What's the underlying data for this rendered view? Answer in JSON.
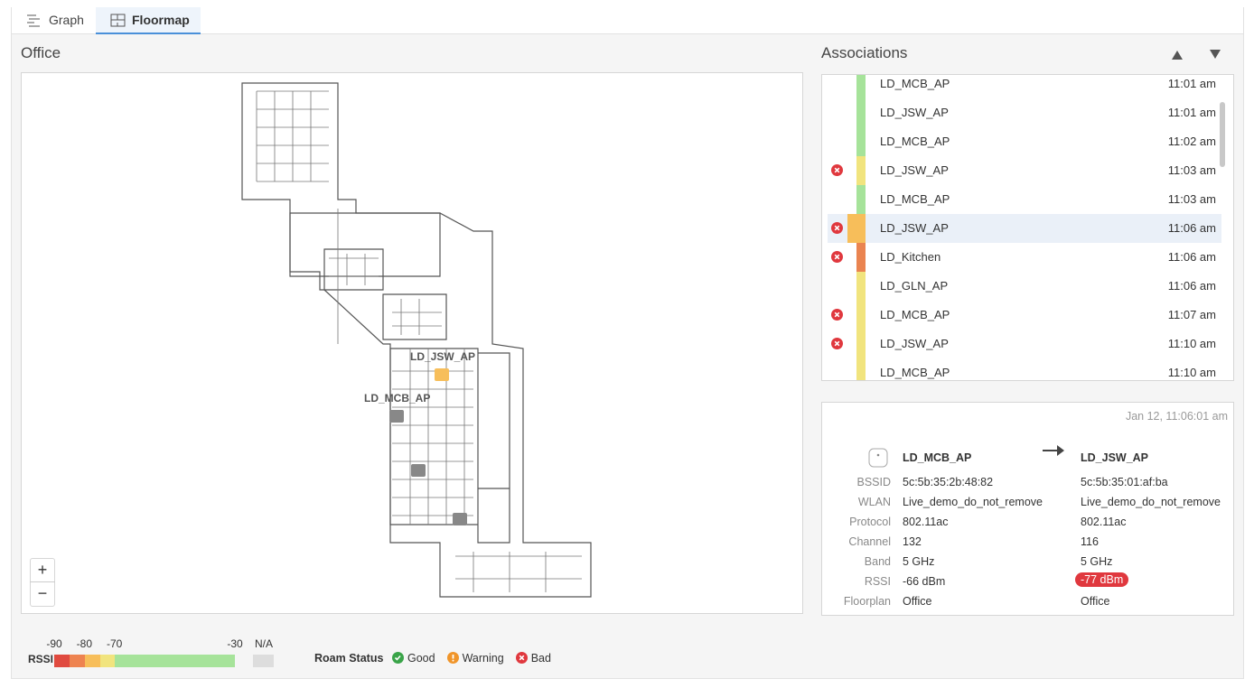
{
  "tabs": [
    "Graph",
    "Floormap"
  ],
  "map": {
    "title": "Office",
    "ap_labels": [
      "LD_JSW_AP",
      "LD_MCB_AP"
    ],
    "zoom_in": "+",
    "zoom_out": "−"
  },
  "associations": {
    "title": "Associations",
    "rows": [
      {
        "ap": "LD_MCB_AP",
        "time": "11:01 am",
        "color": "#a6e39a",
        "bad": false,
        "selected": false
      },
      {
        "ap": "LD_JSW_AP",
        "time": "11:01 am",
        "color": "#a6e39a",
        "bad": false,
        "selected": false
      },
      {
        "ap": "LD_MCB_AP",
        "time": "11:02 am",
        "color": "#a6e39a",
        "bad": false,
        "selected": false
      },
      {
        "ap": "LD_JSW_AP",
        "time": "11:03 am",
        "color": "#f1e47e",
        "bad": true,
        "selected": false
      },
      {
        "ap": "LD_MCB_AP",
        "time": "11:03 am",
        "color": "#a6e39a",
        "bad": false,
        "selected": false
      },
      {
        "ap": "LD_JSW_AP",
        "time": "11:06 am",
        "color": "#f7be5a",
        "bad": true,
        "selected": true
      },
      {
        "ap": "LD_Kitchen",
        "time": "11:06 am",
        "color": "#ea8450",
        "bad": true,
        "selected": false
      },
      {
        "ap": "LD_GLN_AP",
        "time": "11:06 am",
        "color": "#f1e47e",
        "bad": false,
        "selected": false
      },
      {
        "ap": "LD_MCB_AP",
        "time": "11:07 am",
        "color": "#f1e47e",
        "bad": true,
        "selected": false
      },
      {
        "ap": "LD_JSW_AP",
        "time": "11:10 am",
        "color": "#f1e47e",
        "bad": true,
        "selected": false
      },
      {
        "ap": "LD_MCB_AP",
        "time": "11:10 am",
        "color": "#f1e47e",
        "bad": false,
        "selected": false
      }
    ]
  },
  "details": {
    "timestamp": "Jan 12, 11:06:01 am",
    "from": "LD_MCB_AP",
    "to": "LD_JSW_AP",
    "fields": [
      {
        "label": "BSSID",
        "from": "5c:5b:35:2b:48:82",
        "to": "5c:5b:35:01:af:ba"
      },
      {
        "label": "WLAN",
        "from": "Live_demo_do_not_remove",
        "to": "Live_demo_do_not_remove"
      },
      {
        "label": "Protocol",
        "from": "802.11ac",
        "to": "802.11ac"
      },
      {
        "label": "Channel",
        "from": "132",
        "to": "116"
      },
      {
        "label": "Band",
        "from": "5 GHz",
        "to": "5 GHz"
      },
      {
        "label": "RSSI",
        "from": "-66 dBm",
        "to": "-77 dBm",
        "to_badge": "#e0383e"
      },
      {
        "label": "Floorplan",
        "from": "Office",
        "to": "Office"
      }
    ]
  },
  "legend": {
    "rssi_label": "RSSI",
    "rssi_ticks": [
      -90,
      -80,
      -70,
      -30
    ],
    "na": "N/A",
    "roam_title": "Roam Status",
    "statuses": [
      "Good",
      "Warning",
      "Bad"
    ]
  }
}
